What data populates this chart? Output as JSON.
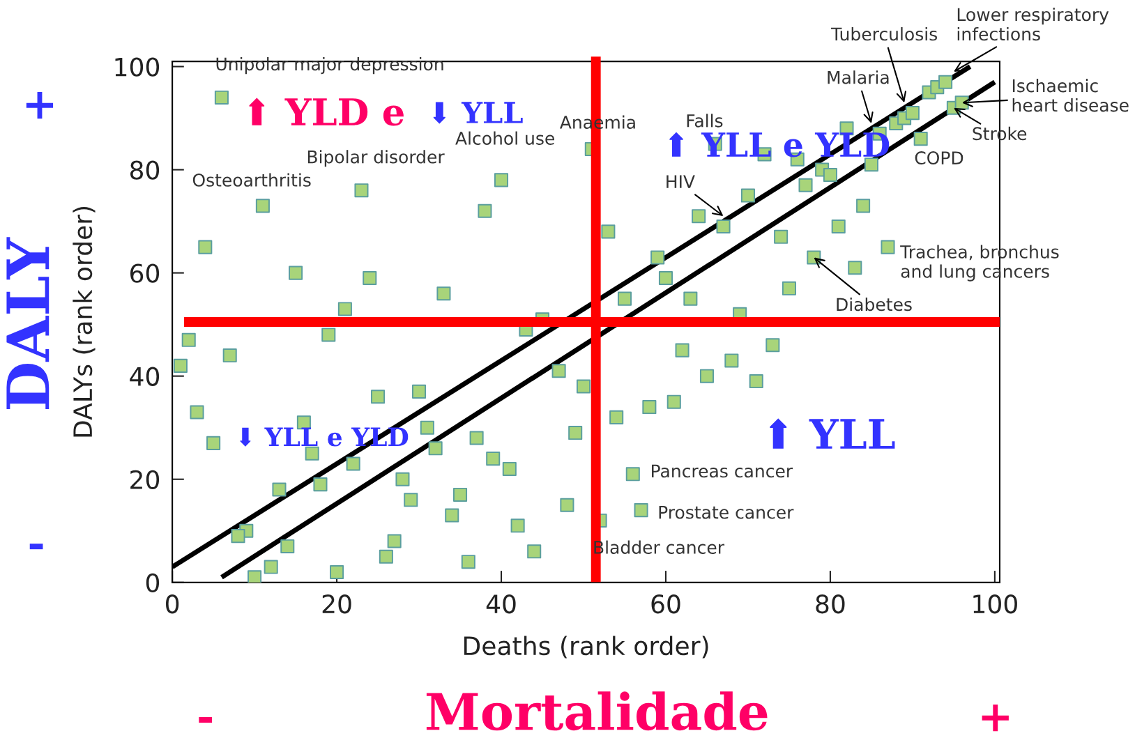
{
  "chart_data": {
    "type": "scatter",
    "xlabel": "Deaths (rank order)",
    "ylabel": "DALYs (rank order)",
    "xlim": [
      0,
      100.6
    ],
    "ylim": [
      0,
      101
    ],
    "xticks": [
      0,
      20,
      40,
      60,
      80,
      100
    ],
    "yticks": [
      0,
      20,
      40,
      60,
      80,
      100
    ],
    "grid": false,
    "legend": false,
    "marker": "square",
    "series": [
      {
        "color": "#a8d47a",
        "x": [
          6,
          11,
          4,
          15,
          23,
          24,
          33,
          38,
          40,
          51,
          21,
          19,
          1,
          2,
          7,
          3,
          5,
          16,
          17,
          22,
          25,
          30,
          31,
          32,
          13,
          18,
          28,
          29,
          37,
          39,
          41,
          35,
          34,
          42,
          44,
          36,
          26,
          27,
          20,
          10,
          12,
          14,
          9,
          8,
          43,
          45,
          47,
          50,
          49,
          48,
          52,
          53,
          55,
          54,
          56,
          57,
          58,
          61,
          62,
          63,
          59,
          60,
          64,
          65,
          66,
          67,
          68,
          69,
          70,
          71,
          72,
          73,
          74,
          75,
          76,
          77,
          78,
          79,
          80,
          81,
          82,
          83,
          84,
          85,
          86,
          87,
          88,
          89,
          90,
          91,
          92,
          93,
          94,
          95,
          96
        ],
        "values": [
          94,
          73,
          65,
          60,
          76,
          59,
          56,
          72,
          78,
          84,
          53,
          48,
          42,
          47,
          44,
          33,
          27,
          31,
          25,
          23,
          36,
          37,
          30,
          26,
          18,
          19,
          20,
          16,
          28,
          24,
          22,
          17,
          13,
          11,
          6,
          4,
          5,
          8,
          2,
          1,
          3,
          7,
          10,
          9,
          49,
          51,
          41,
          38,
          29,
          15,
          12,
          68,
          55,
          32,
          21,
          14,
          34,
          35,
          45,
          55,
          63,
          59,
          71,
          40,
          85,
          69,
          43,
          52,
          75,
          39,
          83,
          46,
          67,
          57,
          82,
          77,
          63,
          80,
          79,
          69,
          88,
          61,
          73,
          81,
          87,
          65,
          89,
          90,
          91,
          86,
          95,
          96,
          97,
          92,
          93
        ]
      },
      {
        "type": "line",
        "marker": "none",
        "color": "#000000",
        "line_style": "solid",
        "x": [
          0,
          97
        ],
        "values": [
          3,
          100
        ]
      },
      {
        "type": "line",
        "marker": "none",
        "color": "#000000",
        "line_style": "solid",
        "x": [
          6,
          100
        ],
        "values": [
          1,
          97
        ]
      }
    ],
    "ref_lines": [
      {
        "axis": "x",
        "value": 51.5,
        "color": "#ff0000"
      },
      {
        "axis": "y",
        "value": 50.5,
        "color": "#ff0000"
      }
    ],
    "annotations": [
      {
        "text": "Unipolar major depression",
        "x": 6,
        "y": 94
      },
      {
        "text": "Osteoarthritis",
        "x": 11,
        "y": 73
      },
      {
        "text": "Bipolar disorder",
        "x": 23,
        "y": 76
      },
      {
        "text": "Alcohol use",
        "x": 40,
        "y": 78
      },
      {
        "text": "Anaemia",
        "x": 51,
        "y": 84
      },
      {
        "text": "Falls",
        "x": 66,
        "y": 85
      },
      {
        "text": "HIV",
        "x": 67,
        "y": 71
      },
      {
        "text": "Malaria",
        "x": 85,
        "y": 89
      },
      {
        "text": "Tuberculosis",
        "x": 89,
        "y": 93
      },
      {
        "text": "Lower respiratory\ninfections",
        "x": 95,
        "y": 99
      },
      {
        "text": "Ischaemic\nheart disease",
        "x": 96,
        "y": 93
      },
      {
        "text": "Stroke",
        "x": 95,
        "y": 92
      },
      {
        "text": "COPD",
        "x": 91,
        "y": 86
      },
      {
        "text": "Trachea, bronchus\nand lung cancers",
        "x": 87,
        "y": 65
      },
      {
        "text": "Diabetes",
        "x": 78,
        "y": 63
      },
      {
        "text": "Pancreas cancer",
        "x": 56,
        "y": 21
      },
      {
        "text": "Prostate cancer",
        "x": 57,
        "y": 14
      },
      {
        "text": "Bladder cancer",
        "x": 52,
        "y": 12
      },
      "⬆ YLD e",
      "⬇ YLL",
      "⬆ YLL e YLD",
      "⬇ YLL e YLD",
      "⬆ YLL",
      "DALY",
      "+",
      "-",
      "Mortalidade",
      "-",
      "+"
    ]
  }
}
